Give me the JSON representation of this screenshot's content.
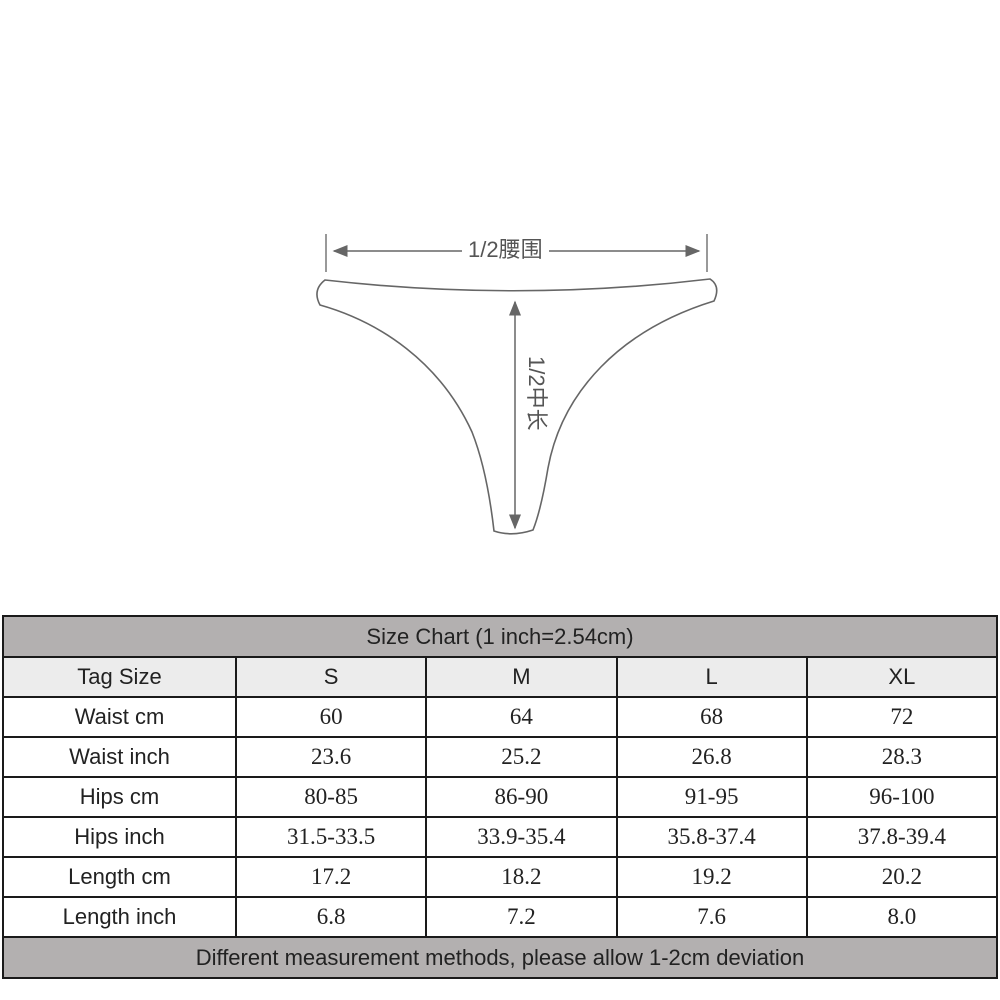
{
  "diagram": {
    "waist_label": "1/2腰围",
    "length_label": "1/2中长"
  },
  "table": {
    "title": "Size Chart (1 inch=2.54cm)",
    "header": [
      "Tag Size",
      "S",
      "M",
      "L",
      "XL"
    ],
    "rows": [
      [
        "Waist cm",
        "60",
        "64",
        "68",
        "72"
      ],
      [
        "Waist inch",
        "23.6",
        "25.2",
        "26.8",
        "28.3"
      ],
      [
        "Hips cm",
        "80-85",
        "86-90",
        "91-95",
        "96-100"
      ],
      [
        "Hips inch",
        "31.5-33.5",
        "33.9-35.4",
        "35.8-37.4",
        "37.8-39.4"
      ],
      [
        "Length cm",
        "17.2",
        "18.2",
        "19.2",
        "20.2"
      ],
      [
        "Length inch",
        "6.8",
        "7.2",
        "7.6",
        "8.0"
      ]
    ],
    "footer": "Different measurement methods, please allow 1-2cm deviation"
  },
  "colors": {
    "title_bg": "#b3b0b0",
    "header_bg": "#ececec",
    "border": "#1a1a1a",
    "diagram_line": "#555555"
  }
}
